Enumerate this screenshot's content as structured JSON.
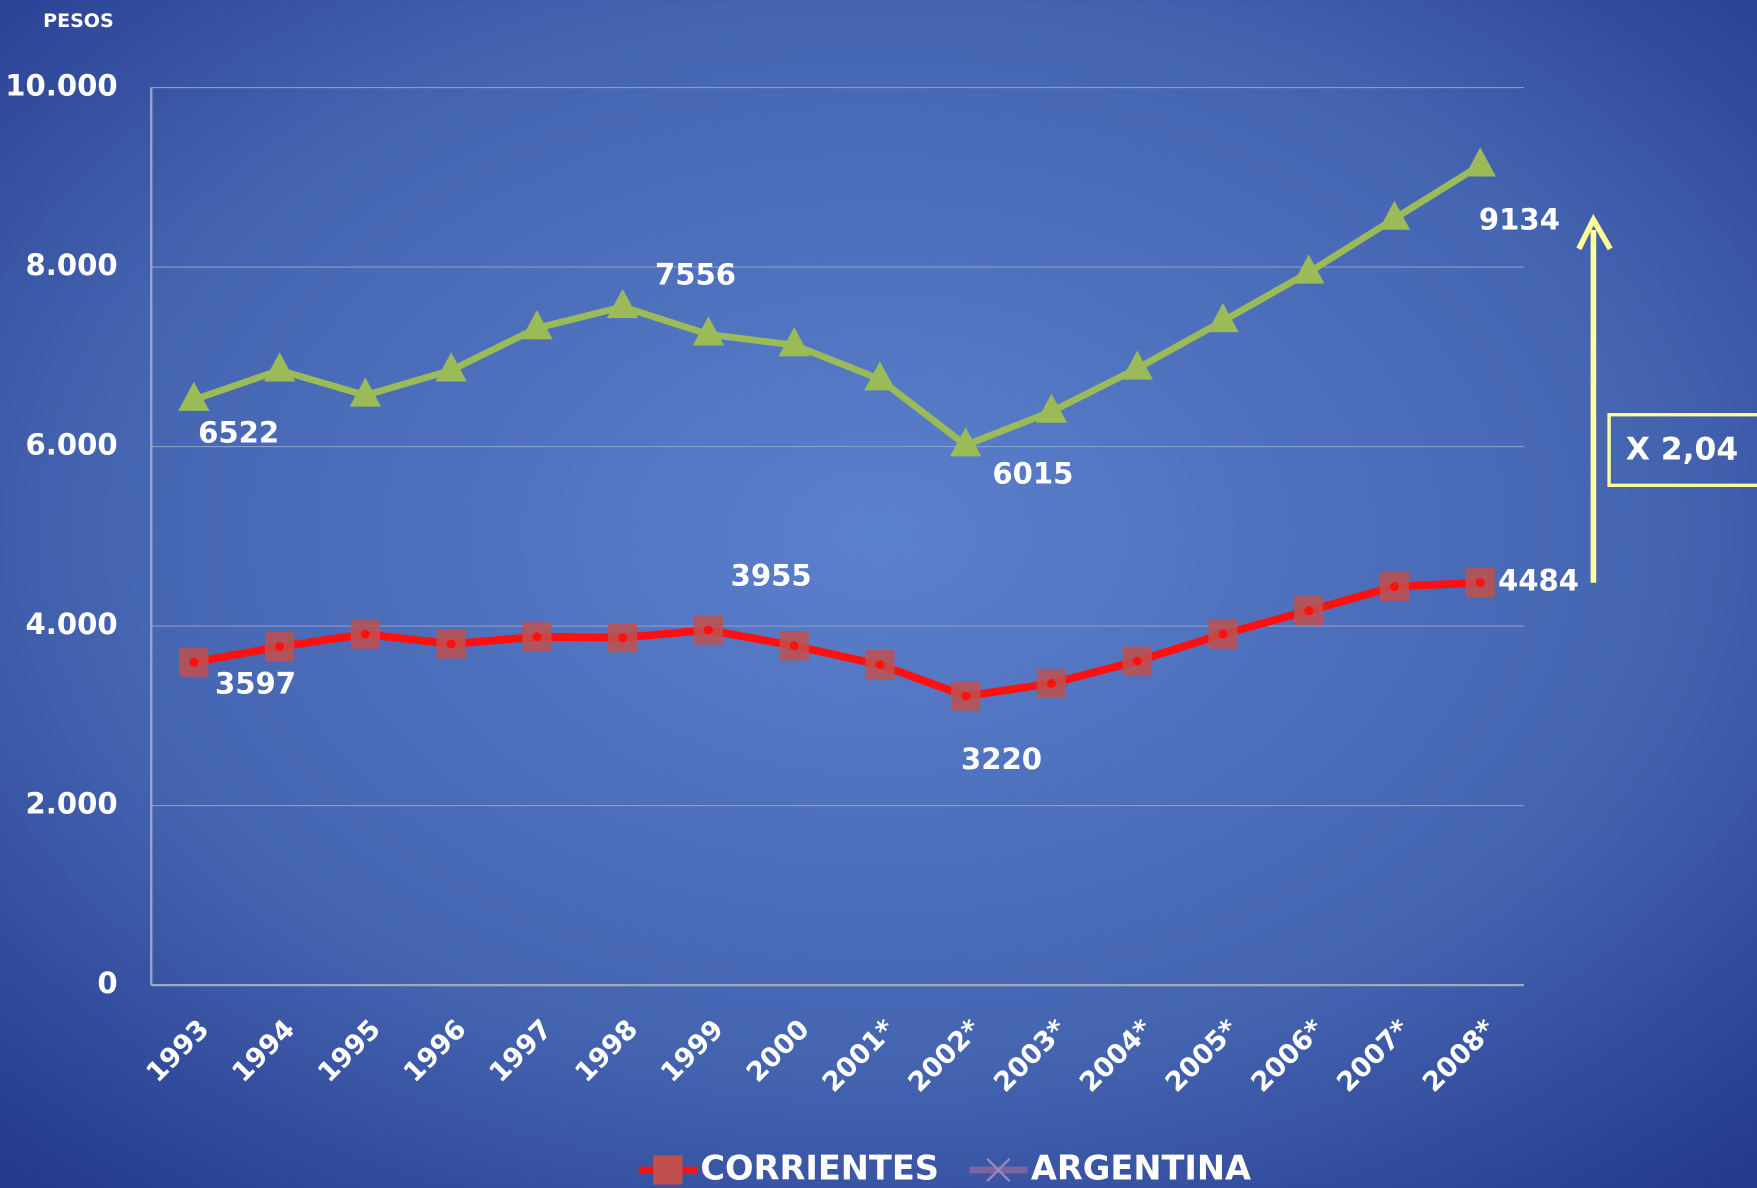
{
  "chart_data": {
    "type": "line",
    "y_axis_label": "PESOS",
    "categories": [
      "1993",
      "1994",
      "1995",
      "1996",
      "1997",
      "1998",
      "1999",
      "2000",
      "2001*",
      "2002*",
      "2003*",
      "2004*",
      "2005*",
      "2006*",
      "2007*",
      "2008*"
    ],
    "series": [
      {
        "name": "CORRIENTES",
        "color": "#ff1010",
        "marker_color": "#c0504d",
        "marker": "square",
        "values": [
          3597,
          3770,
          3910,
          3800,
          3880,
          3870,
          3955,
          3780,
          3570,
          3220,
          3360,
          3610,
          3910,
          4170,
          4440,
          4484
        ],
        "value_labels": [
          "3597",
          null,
          null,
          null,
          null,
          null,
          "3955",
          null,
          null,
          "3220",
          null,
          null,
          null,
          null,
          null,
          "4484"
        ]
      },
      {
        "name": "ARGENTINA",
        "color": "#9bbb59",
        "legend_color": "#8064a2",
        "marker": "triangle",
        "values": [
          6522,
          6850,
          6570,
          6850,
          7320,
          7556,
          7250,
          7130,
          6750,
          6015,
          6390,
          6870,
          7400,
          7940,
          8540,
          9134
        ],
        "value_labels": [
          "6522",
          null,
          null,
          null,
          null,
          "7556",
          null,
          null,
          null,
          "6015",
          null,
          null,
          null,
          null,
          null,
          "9134"
        ]
      }
    ],
    "ylim": [
      0,
      10000
    ],
    "yticks": [
      0,
      {
        "value": 2000,
        "label": "2.000"
      },
      {
        "value": 4000,
        "label": "4.000"
      },
      {
        "value": 6000,
        "label": "6.000"
      },
      {
        "value": 8000,
        "label": "8.000"
      },
      {
        "value": 10000,
        "label": "10.000"
      }
    ],
    "grid": true,
    "annotation": "X 2,04",
    "legend": "bottom"
  }
}
